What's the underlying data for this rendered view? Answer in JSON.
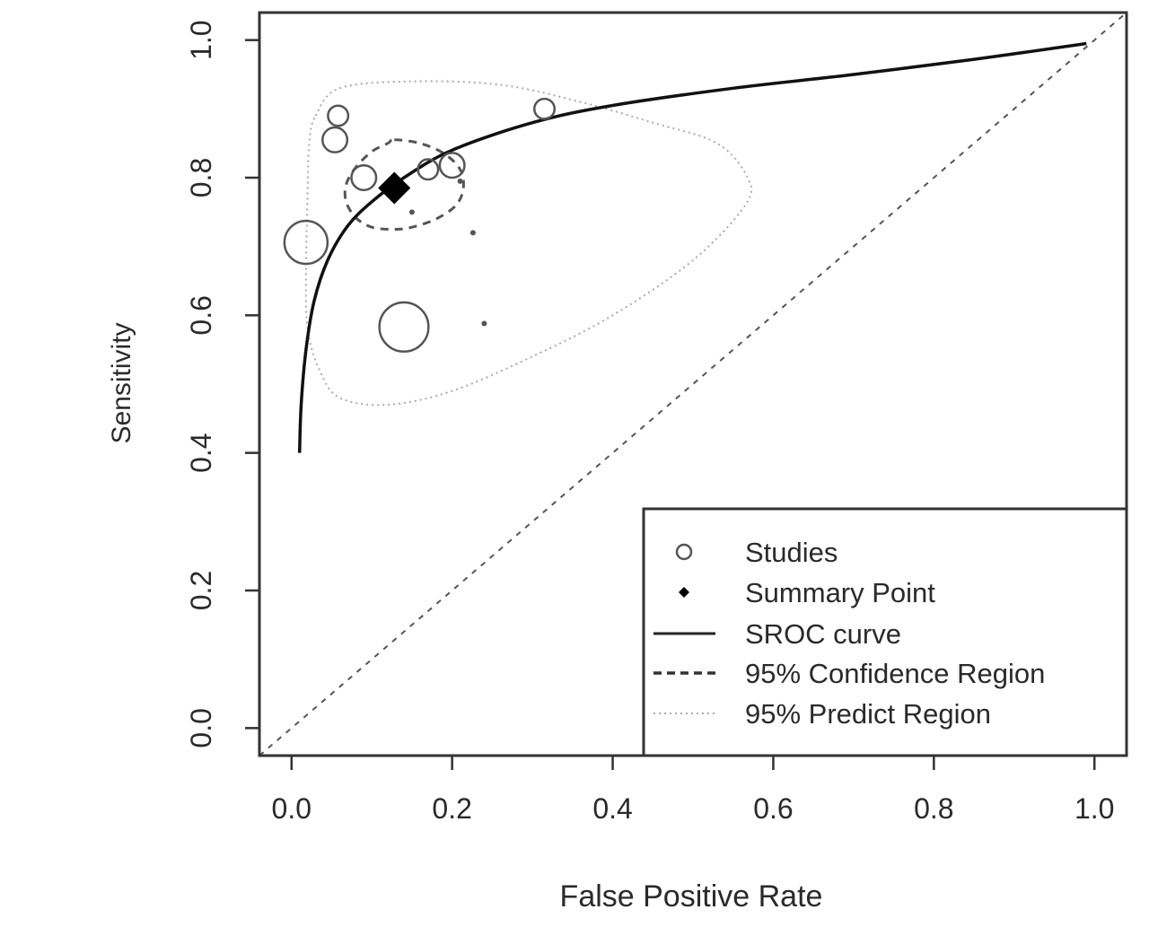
{
  "chart_data": {
    "type": "scatter",
    "title": "",
    "xlabel": "False Positive Rate",
    "ylabel": "Sensitivity",
    "xlim": [
      -0.04,
      1.04
    ],
    "ylim": [
      -0.04,
      1.04
    ],
    "x_ticks": [
      "0.0",
      "0.2",
      "0.4",
      "0.6",
      "0.8",
      "1.0"
    ],
    "y_ticks": [
      "0.0",
      "0.2",
      "0.4",
      "0.6",
      "0.8",
      "1.0"
    ],
    "grid": false,
    "legend_position": "bottom-right",
    "legend": [
      {
        "label": "Studies",
        "symbol": "open-circle"
      },
      {
        "label": "Summary Point",
        "symbol": "filled-diamond"
      },
      {
        "label": "SROC curve",
        "symbol": "solid-line"
      },
      {
        "label": "95% Confidence Region",
        "symbol": "dashed-line"
      },
      {
        "label": "95% Predict Region",
        "symbol": "dotted-line"
      }
    ],
    "studies": [
      {
        "fpr": 0.018,
        "sens": 0.706,
        "weight": 1.0
      },
      {
        "fpr": 0.14,
        "sens": 0.583,
        "weight": 1.3
      },
      {
        "fpr": 0.054,
        "sens": 0.855,
        "weight": 0.33
      },
      {
        "fpr": 0.058,
        "sens": 0.89,
        "weight": 0.22
      },
      {
        "fpr": 0.09,
        "sens": 0.8,
        "weight": 0.33
      },
      {
        "fpr": 0.17,
        "sens": 0.812,
        "weight": 0.22
      },
      {
        "fpr": 0.2,
        "sens": 0.818,
        "weight": 0.33
      },
      {
        "fpr": 0.315,
        "sens": 0.9,
        "weight": 0.22
      },
      {
        "fpr": 0.15,
        "sens": 0.75,
        "weight": 0.05
      },
      {
        "fpr": 0.21,
        "sens": 0.795,
        "weight": 0.06
      },
      {
        "fpr": 0.226,
        "sens": 0.72,
        "weight": 0.06
      },
      {
        "fpr": 0.24,
        "sens": 0.588,
        "weight": 0.06
      }
    ],
    "summary_point": {
      "fpr": 0.128,
      "sens": 0.785
    },
    "sroc_curve": [
      [
        0.01,
        0.4
      ],
      [
        0.012,
        0.47
      ],
      [
        0.018,
        0.55
      ],
      [
        0.028,
        0.62
      ],
      [
        0.045,
        0.68
      ],
      [
        0.07,
        0.73
      ],
      [
        0.1,
        0.765
      ],
      [
        0.14,
        0.8
      ],
      [
        0.2,
        0.84
      ],
      [
        0.3,
        0.88
      ],
      [
        0.4,
        0.905
      ],
      [
        0.55,
        0.93
      ],
      [
        0.7,
        0.95
      ],
      [
        0.85,
        0.972
      ],
      [
        0.99,
        0.995
      ]
    ],
    "confidence_region": [
      [
        0.128,
        0.855
      ],
      [
        0.16,
        0.85
      ],
      [
        0.19,
        0.835
      ],
      [
        0.21,
        0.812
      ],
      [
        0.214,
        0.785
      ],
      [
        0.205,
        0.76
      ],
      [
        0.18,
        0.74
      ],
      [
        0.15,
        0.728
      ],
      [
        0.128,
        0.725
      ],
      [
        0.1,
        0.728
      ],
      [
        0.08,
        0.742
      ],
      [
        0.068,
        0.765
      ],
      [
        0.068,
        0.79
      ],
      [
        0.08,
        0.815
      ],
      [
        0.1,
        0.838
      ],
      [
        0.12,
        0.85
      ]
    ],
    "predict_region": [
      [
        0.03,
        0.89
      ],
      [
        0.06,
        0.93
      ],
      [
        0.15,
        0.94
      ],
      [
        0.26,
        0.935
      ],
      [
        0.36,
        0.91
      ],
      [
        0.45,
        0.88
      ],
      [
        0.53,
        0.85
      ],
      [
        0.568,
        0.8
      ],
      [
        0.565,
        0.76
      ],
      [
        0.5,
        0.68
      ],
      [
        0.4,
        0.6
      ],
      [
        0.3,
        0.54
      ],
      [
        0.2,
        0.49
      ],
      [
        0.12,
        0.47
      ],
      [
        0.06,
        0.48
      ],
      [
        0.035,
        0.52
      ],
      [
        0.02,
        0.58
      ],
      [
        0.018,
        0.66
      ],
      [
        0.02,
        0.78
      ],
      [
        0.022,
        0.85
      ]
    ],
    "diagonal": [
      [
        -0.04,
        -0.04
      ],
      [
        1.04,
        1.04
      ]
    ]
  }
}
